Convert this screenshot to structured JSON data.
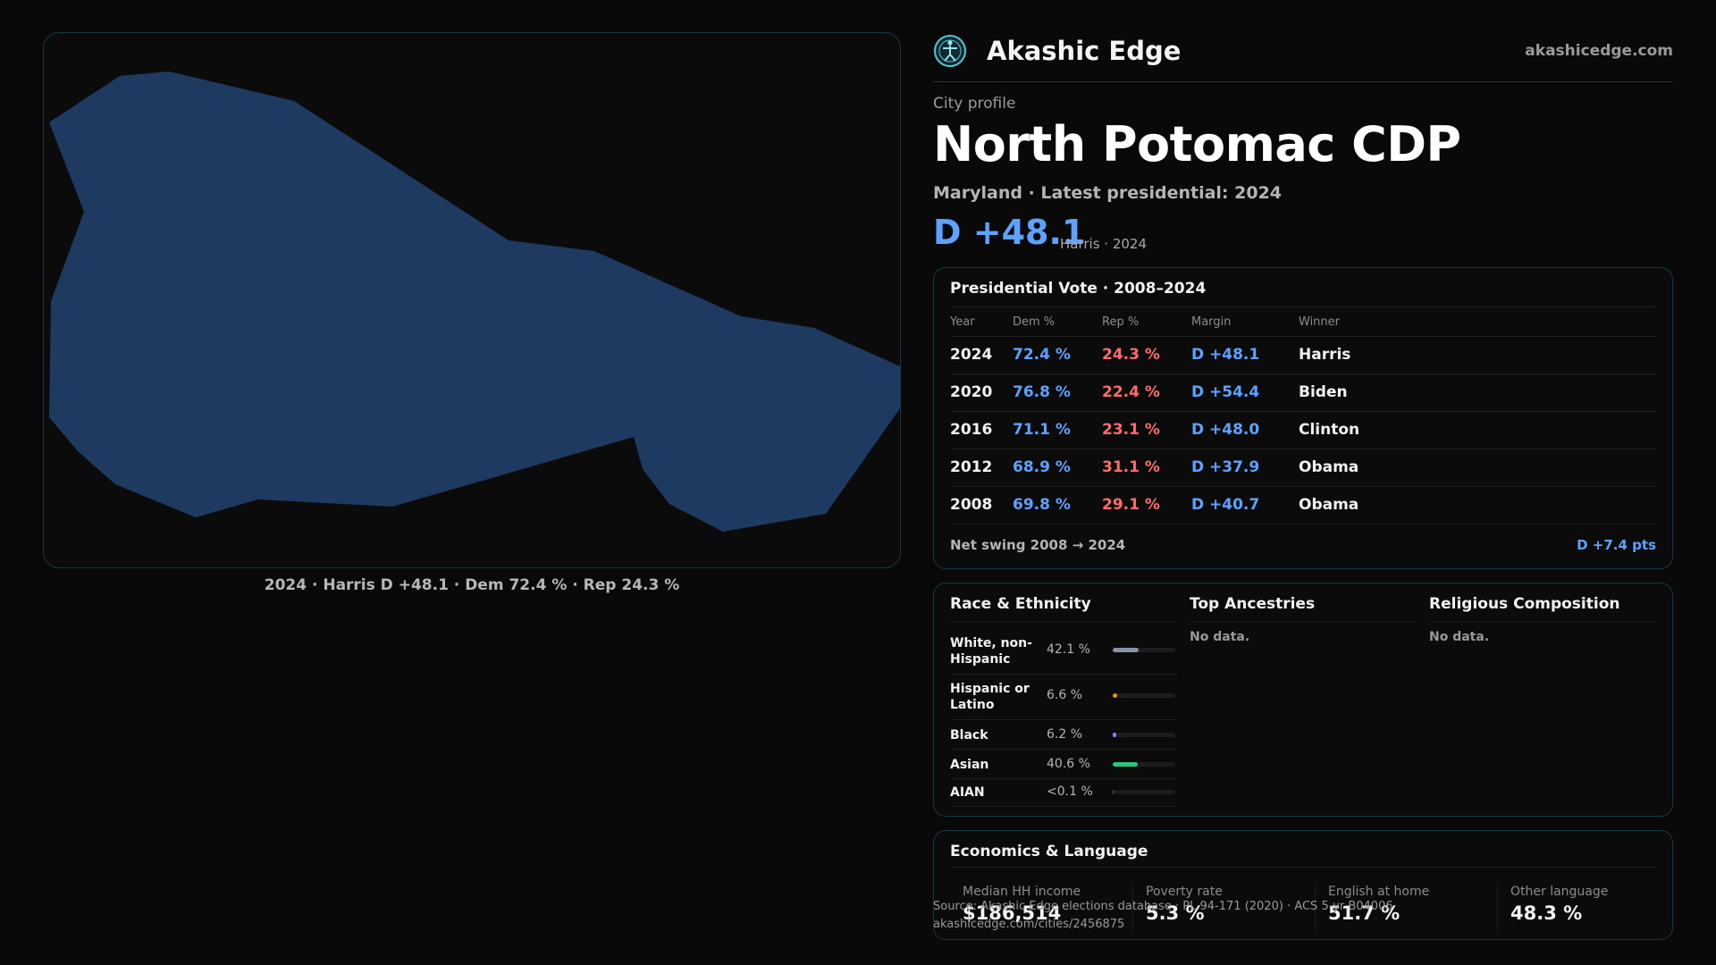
{
  "map": {
    "fill_color": "#1f3a60",
    "caption": "2024 · Harris D +48.1 · Dem 72.4 % · Rep 24.3 %"
  },
  "header": {
    "brand": "Akashic Edge",
    "site": "akashicedge.com",
    "logo_icon": "compass-figure-icon"
  },
  "profile": {
    "eyebrow": "City profile",
    "name": "North Potomac CDP",
    "subtitle": "Maryland · Latest presidential: 2024",
    "margin": "D +48.1",
    "margin_note": "Harris · 2024"
  },
  "vote": {
    "title": "Presidential Vote · 2008–2024",
    "headers": {
      "year": "Year",
      "dem": "Dem %",
      "rep": "Rep %",
      "margin": "Margin",
      "winner": "Winner"
    },
    "rows": [
      {
        "year": "2024",
        "dem": "72.4 %",
        "rep": "24.3 %",
        "margin": "D +48.1",
        "winner": "Harris"
      },
      {
        "year": "2020",
        "dem": "76.8 %",
        "rep": "22.4 %",
        "margin": "D +54.4",
        "winner": "Biden"
      },
      {
        "year": "2016",
        "dem": "71.1 %",
        "rep": "23.1 %",
        "margin": "D +48.0",
        "winner": "Clinton"
      },
      {
        "year": "2012",
        "dem": "68.9 %",
        "rep": "31.1 %",
        "margin": "D +37.9",
        "winner": "Obama"
      },
      {
        "year": "2008",
        "dem": "69.8 %",
        "rep": "29.1 %",
        "margin": "D +40.7",
        "winner": "Obama"
      }
    ],
    "swing_label": "Net swing 2008 → 2024",
    "swing_value": "D +7.4 pts",
    "colors": {
      "dem": "#5ea2ff",
      "rep": "#ff6b6b"
    }
  },
  "race": {
    "title": "Race & Ethnicity",
    "rows": [
      {
        "label": "White, non-Hispanic",
        "pct": "42.1 %",
        "value": 42.1,
        "color": "#8a93a3"
      },
      {
        "label": "Hispanic or Latino",
        "pct": "6.6 %",
        "value": 6.6,
        "color": "#e0902a"
      },
      {
        "label": "Black",
        "pct": "6.2 %",
        "value": 6.2,
        "color": "#8a7cff"
      },
      {
        "label": "Asian",
        "pct": "40.6 %",
        "value": 40.6,
        "color": "#2ec27e"
      },
      {
        "label": "AIAN",
        "pct": "<0.1 %",
        "value": 0.05,
        "color": "#5a5a5a"
      }
    ]
  },
  "ancestries": {
    "title": "Top Ancestries",
    "empty": "No data."
  },
  "religion": {
    "title": "Religious Composition",
    "empty": "No data."
  },
  "economics": {
    "title": "Economics & Language",
    "stats": [
      {
        "label": "Median HH income",
        "value": "$186,514"
      },
      {
        "label": "Poverty rate",
        "value": "5.3 %"
      },
      {
        "label": "English at home",
        "value": "51.7 %"
      },
      {
        "label": "Other language",
        "value": "48.3 %"
      }
    ]
  },
  "footer": {
    "source": "Source: Akashic Edge elections database · PL 94-171 (2020) · ACS 5-yr B04006",
    "url": "akashicedge.com/cities/2456875"
  }
}
